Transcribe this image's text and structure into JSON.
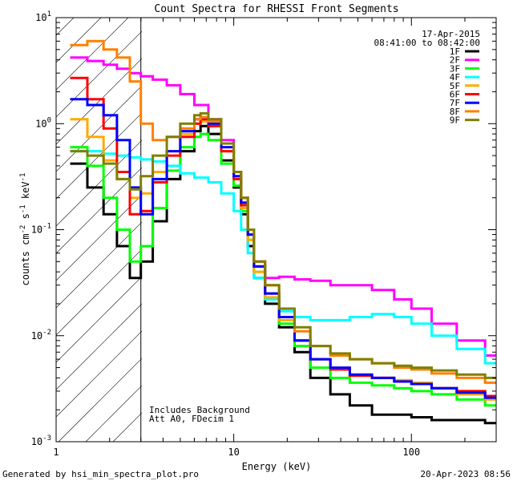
{
  "chart_data": {
    "type": "line",
    "title": "Count Spectra for RHESSI Front Segments",
    "xlabel": "Energy (keV)",
    "ylabel_main": "counts cm",
    "ylabel_exp1": "-2",
    "ylabel_mid": " s",
    "ylabel_exp2": "-1",
    "ylabel_end": " keV",
    "ylabel_exp3": "-1",
    "x_scale": "log",
    "y_scale": "log",
    "xlim": [
      1,
      300
    ],
    "ylim": [
      0.001,
      10
    ],
    "x_ticks": [
      {
        "value": 1,
        "label": "1"
      },
      {
        "value": 10,
        "label": "10"
      },
      {
        "value": 100,
        "label": "100"
      }
    ],
    "y_ticks": [
      {
        "value": 10,
        "base": "10",
        "exp": "1"
      },
      {
        "value": 1,
        "base": "10",
        "exp": "0"
      },
      {
        "value": 0.1,
        "base": "10",
        "exp": "-1"
      },
      {
        "value": 0.01,
        "base": "10",
        "exp": "-2"
      },
      {
        "value": 0.001,
        "base": "10",
        "exp": "-3"
      }
    ],
    "threshold_energy": 3,
    "legend_date": "17-Apr-2015",
    "legend_time": "08:41:00 to 08:42:00",
    "annotation_line1": "Includes Background",
    "annotation_line2": "Att A0, FDecim 1",
    "footer_left": "Generated by hsi_min_spectra_plot.pro",
    "footer_right": "20-Apr-2023 08:56",
    "series": [
      {
        "name": "1F",
        "color": "#000000",
        "points": [
          [
            1.2,
            0.42
          ],
          [
            1.5,
            0.25
          ],
          [
            1.85,
            0.14
          ],
          [
            2.2,
            0.07
          ],
          [
            2.6,
            0.035
          ],
          [
            3.0,
            0.05
          ],
          [
            3.5,
            0.12
          ],
          [
            4.2,
            0.3
          ],
          [
            5.0,
            0.55
          ],
          [
            6.0,
            0.85
          ],
          [
            6.5,
            0.95
          ],
          [
            7.2,
            0.8
          ],
          [
            8.5,
            0.45
          ],
          [
            10,
            0.25
          ],
          [
            11,
            0.14
          ],
          [
            12,
            0.07
          ],
          [
            13,
            0.035
          ],
          [
            15,
            0.02
          ],
          [
            18,
            0.012
          ],
          [
            22,
            0.007
          ],
          [
            27,
            0.004
          ],
          [
            35,
            0.0028
          ],
          [
            45,
            0.0022
          ],
          [
            60,
            0.0018
          ],
          [
            80,
            0.0018
          ],
          [
            100,
            0.0017
          ],
          [
            130,
            0.0016
          ],
          [
            180,
            0.0016
          ],
          [
            260,
            0.0015
          ]
        ]
      },
      {
        "name": "2F",
        "color": "#ff00ff",
        "points": [
          [
            1.2,
            4.2
          ],
          [
            1.5,
            3.9
          ],
          [
            1.85,
            3.6
          ],
          [
            2.2,
            3.3
          ],
          [
            2.6,
            3.0
          ],
          [
            3.0,
            2.8
          ],
          [
            3.5,
            2.6
          ],
          [
            4.2,
            2.3
          ],
          [
            5.0,
            1.9
          ],
          [
            6.0,
            1.5
          ],
          [
            7.2,
            1.1
          ],
          [
            8.5,
            0.7
          ],
          [
            10,
            0.35
          ],
          [
            11,
            0.2
          ],
          [
            12,
            0.1
          ],
          [
            13,
            0.05
          ],
          [
            15,
            0.035
          ],
          [
            18,
            0.036
          ],
          [
            22,
            0.034
          ],
          [
            27,
            0.033
          ],
          [
            35,
            0.03
          ],
          [
            45,
            0.03
          ],
          [
            60,
            0.027
          ],
          [
            80,
            0.022
          ],
          [
            100,
            0.018
          ],
          [
            130,
            0.013
          ],
          [
            180,
            0.009
          ],
          [
            260,
            0.0065
          ]
        ]
      },
      {
        "name": "3F",
        "color": "#00ff00",
        "points": [
          [
            1.2,
            0.6
          ],
          [
            1.5,
            0.4
          ],
          [
            1.85,
            0.2
          ],
          [
            2.2,
            0.1
          ],
          [
            2.6,
            0.05
          ],
          [
            3.0,
            0.07
          ],
          [
            3.5,
            0.16
          ],
          [
            4.2,
            0.36
          ],
          [
            5.0,
            0.6
          ],
          [
            6.0,
            0.75
          ],
          [
            6.5,
            0.8
          ],
          [
            7.2,
            0.7
          ],
          [
            8.5,
            0.42
          ],
          [
            10,
            0.26
          ],
          [
            11,
            0.15
          ],
          [
            12,
            0.08
          ],
          [
            13,
            0.04
          ],
          [
            15,
            0.022
          ],
          [
            18,
            0.013
          ],
          [
            22,
            0.008
          ],
          [
            27,
            0.005
          ],
          [
            35,
            0.004
          ],
          [
            45,
            0.0036
          ],
          [
            60,
            0.0034
          ],
          [
            80,
            0.0032
          ],
          [
            100,
            0.003
          ],
          [
            130,
            0.0028
          ],
          [
            180,
            0.0025
          ],
          [
            260,
            0.0022
          ]
        ]
      },
      {
        "name": "4F",
        "color": "#00ffff",
        "points": [
          [
            1.2,
            0.55
          ],
          [
            1.5,
            0.55
          ],
          [
            1.85,
            0.52
          ],
          [
            2.2,
            0.5
          ],
          [
            2.6,
            0.48
          ],
          [
            3.0,
            0.46
          ],
          [
            3.5,
            0.44
          ],
          [
            4.2,
            0.4
          ],
          [
            5.0,
            0.34
          ],
          [
            6.0,
            0.31
          ],
          [
            7.2,
            0.28
          ],
          [
            8.5,
            0.22
          ],
          [
            10,
            0.15
          ],
          [
            11,
            0.1
          ],
          [
            12,
            0.06
          ],
          [
            13,
            0.035
          ],
          [
            15,
            0.022
          ],
          [
            18,
            0.017
          ],
          [
            22,
            0.015
          ],
          [
            27,
            0.014
          ],
          [
            35,
            0.014
          ],
          [
            45,
            0.015
          ],
          [
            60,
            0.016
          ],
          [
            80,
            0.015
          ],
          [
            100,
            0.013
          ],
          [
            130,
            0.01
          ],
          [
            180,
            0.0075
          ],
          [
            260,
            0.0055
          ]
        ]
      },
      {
        "name": "5F",
        "color": "#ffaa00",
        "points": [
          [
            1.2,
            1.1
          ],
          [
            1.5,
            0.75
          ],
          [
            1.85,
            0.45
          ],
          [
            2.2,
            0.3
          ],
          [
            2.6,
            0.2
          ],
          [
            3.0,
            0.22
          ],
          [
            3.5,
            0.35
          ],
          [
            4.2,
            0.55
          ],
          [
            5.0,
            0.8
          ],
          [
            6.0,
            1.0
          ],
          [
            6.5,
            1.05
          ],
          [
            7.2,
            0.95
          ],
          [
            8.5,
            0.55
          ],
          [
            10,
            0.3
          ],
          [
            11,
            0.16
          ],
          [
            12,
            0.08
          ],
          [
            13,
            0.04
          ],
          [
            15,
            0.023
          ],
          [
            18,
            0.014
          ],
          [
            22,
            0.009
          ],
          [
            27,
            0.006
          ],
          [
            35,
            0.0048
          ],
          [
            45,
            0.0042
          ],
          [
            60,
            0.004
          ],
          [
            80,
            0.0038
          ],
          [
            100,
            0.0036
          ],
          [
            130,
            0.0032
          ],
          [
            180,
            0.0028
          ],
          [
            260,
            0.0025
          ]
        ]
      },
      {
        "name": "6F",
        "color": "#ff0000",
        "points": [
          [
            1.2,
            2.7
          ],
          [
            1.5,
            1.7
          ],
          [
            1.85,
            0.9
          ],
          [
            2.2,
            0.35
          ],
          [
            2.6,
            0.14
          ],
          [
            3.0,
            0.15
          ],
          [
            3.5,
            0.28
          ],
          [
            4.2,
            0.5
          ],
          [
            5.0,
            0.75
          ],
          [
            6.0,
            1.0
          ],
          [
            6.5,
            1.1
          ],
          [
            7.2,
            0.95
          ],
          [
            8.5,
            0.55
          ],
          [
            10,
            0.3
          ],
          [
            11,
            0.17
          ],
          [
            12,
            0.09
          ],
          [
            13,
            0.045
          ],
          [
            15,
            0.025
          ],
          [
            18,
            0.015
          ],
          [
            22,
            0.009
          ],
          [
            27,
            0.006
          ],
          [
            35,
            0.0048
          ],
          [
            45,
            0.0042
          ],
          [
            60,
            0.004
          ],
          [
            80,
            0.0037
          ],
          [
            100,
            0.0035
          ],
          [
            130,
            0.0032
          ],
          [
            180,
            0.003
          ],
          [
            260,
            0.0027
          ]
        ]
      },
      {
        "name": "7F",
        "color": "#0000ff",
        "points": [
          [
            1.2,
            1.7
          ],
          [
            1.5,
            1.5
          ],
          [
            1.85,
            1.2
          ],
          [
            2.2,
            0.7
          ],
          [
            2.6,
            0.25
          ],
          [
            3.0,
            0.14
          ],
          [
            3.5,
            0.3
          ],
          [
            4.2,
            0.55
          ],
          [
            5.0,
            0.85
          ],
          [
            6.0,
            1.1
          ],
          [
            6.5,
            1.15
          ],
          [
            7.2,
            1.0
          ],
          [
            8.5,
            0.6
          ],
          [
            10,
            0.32
          ],
          [
            11,
            0.18
          ],
          [
            12,
            0.09
          ],
          [
            13,
            0.045
          ],
          [
            15,
            0.025
          ],
          [
            18,
            0.015
          ],
          [
            22,
            0.009
          ],
          [
            27,
            0.006
          ],
          [
            35,
            0.005
          ],
          [
            45,
            0.0043
          ],
          [
            60,
            0.004
          ],
          [
            80,
            0.0037
          ],
          [
            100,
            0.0035
          ],
          [
            130,
            0.0032
          ],
          [
            180,
            0.0029
          ],
          [
            260,
            0.0026
          ]
        ]
      },
      {
        "name": "8F",
        "color": "#ff7f00",
        "points": [
          [
            1.2,
            5.5
          ],
          [
            1.5,
            6.0
          ],
          [
            1.85,
            5.0
          ],
          [
            2.2,
            4.2
          ],
          [
            2.6,
            2.5
          ],
          [
            3.0,
            1.0
          ],
          [
            3.5,
            0.7
          ],
          [
            4.2,
            0.75
          ],
          [
            5.0,
            0.9
          ],
          [
            6.0,
            1.1
          ],
          [
            6.5,
            1.15
          ],
          [
            7.2,
            1.05
          ],
          [
            8.5,
            0.65
          ],
          [
            10,
            0.35
          ],
          [
            11,
            0.2
          ],
          [
            12,
            0.1
          ],
          [
            13,
            0.05
          ],
          [
            15,
            0.03
          ],
          [
            18,
            0.018
          ],
          [
            22,
            0.011
          ],
          [
            27,
            0.008
          ],
          [
            35,
            0.0065
          ],
          [
            45,
            0.006
          ],
          [
            60,
            0.0055
          ],
          [
            80,
            0.005
          ],
          [
            100,
            0.0048
          ],
          [
            130,
            0.0044
          ],
          [
            180,
            0.004
          ],
          [
            260,
            0.0036
          ]
        ]
      },
      {
        "name": "9F",
        "color": "#7f7f00",
        "points": [
          [
            1.2,
            0.55
          ],
          [
            1.5,
            0.5
          ],
          [
            1.85,
            0.42
          ],
          [
            2.2,
            0.3
          ],
          [
            2.6,
            0.24
          ],
          [
            3.0,
            0.32
          ],
          [
            3.5,
            0.5
          ],
          [
            4.2,
            0.75
          ],
          [
            5.0,
            1.0
          ],
          [
            6.0,
            1.2
          ],
          [
            6.5,
            1.25
          ],
          [
            7.2,
            1.1
          ],
          [
            8.5,
            0.65
          ],
          [
            10,
            0.35
          ],
          [
            11,
            0.2
          ],
          [
            12,
            0.1
          ],
          [
            13,
            0.05
          ],
          [
            15,
            0.03
          ],
          [
            18,
            0.018
          ],
          [
            22,
            0.012
          ],
          [
            27,
            0.008
          ],
          [
            35,
            0.0068
          ],
          [
            45,
            0.006
          ],
          [
            60,
            0.0055
          ],
          [
            80,
            0.0052
          ],
          [
            100,
            0.005
          ],
          [
            130,
            0.0047
          ],
          [
            180,
            0.0043
          ],
          [
            260,
            0.004
          ]
        ]
      }
    ]
  }
}
